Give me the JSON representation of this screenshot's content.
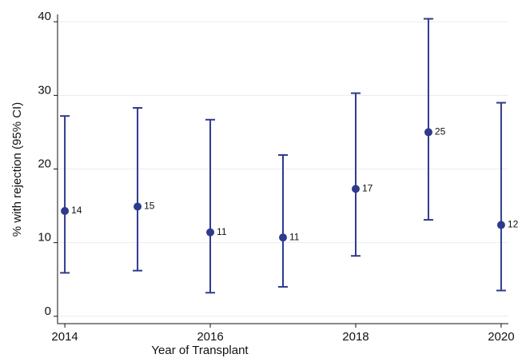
{
  "chart_data": {
    "type": "errorbar",
    "x_label": "Year of Transplant",
    "y_label": "% with rejection (95% CI)",
    "x": [
      2014,
      2015,
      2016,
      2017,
      2018,
      2019,
      2020
    ],
    "series": [
      {
        "color": "#2e3a8c",
        "values": [
          14.3,
          14.9,
          11.4,
          10.7,
          17.3,
          25.0,
          12.4
        ],
        "value_labels": [
          "14",
          "15",
          "11",
          "11",
          "17",
          "25",
          "12"
        ],
        "lower": [
          5.9,
          6.2,
          3.2,
          4.0,
          8.2,
          13.1,
          3.5
        ],
        "upper": [
          27.2,
          28.3,
          26.7,
          21.9,
          30.3,
          40.4,
          29.0
        ]
      }
    ],
    "xlim": [
      2013.9,
      2020.1
    ],
    "xticks": [
      2014,
      2016,
      2018,
      2020
    ],
    "ylim": [
      -1,
      41
    ],
    "yticks": [
      0,
      10,
      20,
      30,
      40
    ],
    "grid": true
  }
}
